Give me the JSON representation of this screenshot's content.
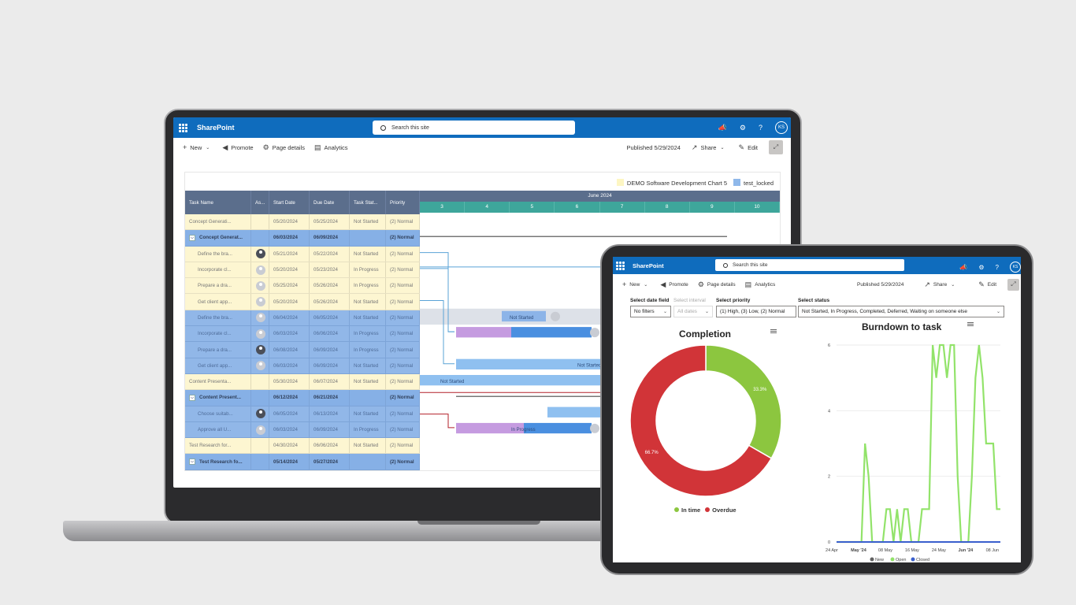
{
  "laptop": {
    "header": {
      "app_name": "SharePoint",
      "search_placeholder": "Search this site",
      "avatar": "KS"
    },
    "commands": {
      "new": "New",
      "promote": "Promote",
      "page_details": "Page details",
      "analytics": "Analytics",
      "published": "Published 5/29/2024",
      "share": "Share",
      "edit": "Edit"
    },
    "legend": [
      {
        "label": "DEMO Software Development Chart 5",
        "color": "#fdf6c3"
      },
      {
        "label": "test_locked",
        "color": "#8fb8ea"
      }
    ],
    "columns": [
      "Task Name",
      "As...",
      "Start Date",
      "Due Date",
      "Task Stat...",
      "Priority"
    ],
    "month": "June 2024",
    "days": [
      "3",
      "4",
      "5",
      "6",
      "7",
      "8",
      "9",
      "10"
    ],
    "rows": [
      {
        "style": "y",
        "name": "Concept Generati...",
        "avatar": "",
        "start": "05/20/2024",
        "due": "05/25/2024",
        "status": "Not Started",
        "priority": "(2) Normal"
      },
      {
        "style": "bs",
        "exp": true,
        "name": "Concept Generat...",
        "avatar": "",
        "start": "06/03/2024",
        "due": "06/09/2024",
        "status": "",
        "priority": "(2) Normal"
      },
      {
        "style": "y",
        "ind": true,
        "name": "Define the bra...",
        "avatar": "photo",
        "start": "05/21/2024",
        "due": "05/22/2024",
        "status": "Not Started",
        "priority": "(2) Normal"
      },
      {
        "style": "y",
        "ind": true,
        "name": "Incorporate cl...",
        "avatar": "gray",
        "start": "05/20/2024",
        "due": "05/23/2024",
        "status": "In Progress",
        "priority": "(2) Normal"
      },
      {
        "style": "y",
        "ind": true,
        "name": "Prepare a dra...",
        "avatar": "gray",
        "start": "05/25/2024",
        "due": "05/26/2024",
        "status": "In Progress",
        "priority": "(2) Normal"
      },
      {
        "style": "y",
        "ind": true,
        "name": "Get client app...",
        "avatar": "gray",
        "start": "05/20/2024",
        "due": "05/26/2024",
        "status": "Not Started",
        "priority": "(2) Normal"
      },
      {
        "style": "b",
        "ind": true,
        "name": "Define the bra...",
        "avatar": "gray",
        "start": "06/04/2024",
        "due": "06/05/2024",
        "status": "Not Started",
        "priority": "(2) Normal"
      },
      {
        "style": "b",
        "ind": true,
        "name": "Incorporate cl...",
        "avatar": "gray",
        "start": "06/03/2024",
        "due": "06/06/2024",
        "status": "In Progress",
        "priority": "(2) Normal"
      },
      {
        "style": "b",
        "ind": true,
        "name": "Prepare a dra...",
        "avatar": "photo",
        "start": "06/08/2024",
        "due": "06/09/2024",
        "status": "In Progress",
        "priority": "(2) Normal"
      },
      {
        "style": "b",
        "ind": true,
        "name": "Get client app...",
        "avatar": "gray",
        "start": "06/03/2024",
        "due": "06/09/2024",
        "status": "Not Started",
        "priority": "(2) Normal"
      },
      {
        "style": "y",
        "name": "Content Presenta...",
        "avatar": "",
        "start": "05/30/2024",
        "due": "06/07/2024",
        "status": "Not Started",
        "priority": "(2) Normal"
      },
      {
        "style": "bs",
        "exp": true,
        "name": "Content Present...",
        "avatar": "",
        "start": "06/12/2024",
        "due": "06/21/2024",
        "status": "",
        "priority": "(2) Normal"
      },
      {
        "style": "b",
        "ind": true,
        "name": "Choose suitab...",
        "avatar": "photo",
        "start": "06/05/2024",
        "due": "06/13/2024",
        "status": "Not Started",
        "priority": "(2) Normal"
      },
      {
        "style": "b",
        "ind": true,
        "name": "Approve all U...",
        "avatar": "gray",
        "start": "06/03/2024",
        "due": "06/09/2024",
        "status": "In Progress",
        "priority": "(2) Normal"
      },
      {
        "style": "y",
        "name": "Test Research for...",
        "avatar": "",
        "start": "04/30/2024",
        "due": "06/06/2024",
        "status": "Not Started",
        "priority": "(2) Normal"
      },
      {
        "style": "bs",
        "exp": true,
        "name": "Test Research fo...",
        "avatar": "",
        "start": "05/14/2024",
        "due": "05/27/2024",
        "status": "",
        "priority": "(2) Normal"
      },
      {
        "style": "y",
        "ind": true,
        "name": "Set the client...",
        "avatar": "photo",
        "start": "05/14/2024",
        "due": "05/20/2024",
        "status": "Not Started",
        "priority": "(2) Normal"
      }
    ],
    "bar_labels": {
      "not_started": "Not Started",
      "in_progress": "In Progress"
    }
  },
  "tablet": {
    "header": {
      "app_name": "SharePoint",
      "search_placeholder": "Search this site",
      "avatar": "KS"
    },
    "commands": {
      "new": "New",
      "promote": "Promote",
      "page_details": "Page details",
      "analytics": "Analytics",
      "published": "Published 5/29/2024",
      "share": "Share",
      "edit": "Edit"
    },
    "filters": {
      "date_field_label": "Select date field",
      "date_field_value": "No filters",
      "interval_label": "Select interval",
      "interval_value": "All dates",
      "priority_label": "Select priority",
      "priority_value": "(1) High, (3) Low, (2) Normal",
      "status_label": "Select status",
      "status_value": "Not Started, In Progress, Completed, Deferred, Waiting on someone else"
    }
  },
  "chart_data": [
    {
      "type": "pie",
      "title": "Completion",
      "categories": [
        "In time",
        "Overdue"
      ],
      "values": [
        33.3,
        66.7
      ],
      "data_labels": [
        "33.3%",
        "66.7%"
      ],
      "colors": [
        "#8cc63f",
        "#d13438"
      ],
      "legend": "bottom"
    },
    {
      "type": "line",
      "title": "Burndown to task",
      "x_ticks": [
        "24 Apr",
        "May '24",
        "08 May",
        "16 May",
        "24 May",
        "Jun '24",
        "08 Jun"
      ],
      "y_ticks": [
        "0",
        "2",
        "4",
        "6"
      ],
      "ylim": [
        0,
        6
      ],
      "grid": true,
      "legend": "bottom",
      "series": [
        {
          "name": "New",
          "color": "#616161",
          "values": [
            0,
            0,
            0,
            0,
            0,
            0,
            0,
            0,
            0,
            0,
            0,
            0,
            0,
            0,
            0,
            0,
            0,
            0,
            0,
            0,
            0,
            0,
            0,
            0,
            0,
            0,
            0,
            0,
            0,
            0,
            0,
            0,
            0,
            0,
            0,
            0,
            0,
            0,
            0,
            0,
            0,
            0,
            0,
            0,
            0,
            0,
            0
          ]
        },
        {
          "name": "Open",
          "color": "#92e36a",
          "values": [
            0,
            0,
            0,
            0,
            0,
            0,
            0,
            0,
            3,
            2,
            0,
            0,
            0,
            0,
            1,
            1,
            0,
            1,
            0,
            1,
            1,
            0,
            0,
            0,
            1,
            1,
            1,
            6,
            5,
            6,
            6,
            5,
            6,
            6,
            2,
            0,
            0,
            0,
            2,
            5,
            6,
            5,
            3,
            3,
            3,
            1,
            1
          ]
        },
        {
          "name": "Closed",
          "color": "#3a5fcd",
          "values": [
            0,
            0,
            0,
            0,
            0,
            0,
            0,
            0,
            0,
            0,
            0,
            0,
            0,
            0,
            0,
            0,
            0,
            0,
            0,
            0,
            0,
            0,
            0,
            0,
            0,
            0,
            0,
            0,
            0,
            0,
            0,
            0,
            0,
            0,
            0,
            0,
            0,
            0,
            0,
            0,
            0,
            0,
            0,
            0,
            0,
            0,
            0
          ]
        }
      ]
    }
  ]
}
